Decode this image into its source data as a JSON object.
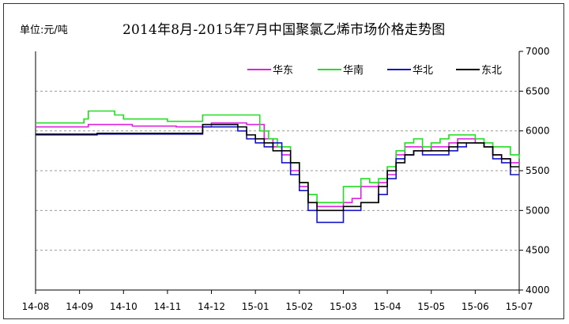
{
  "chart_data": {
    "type": "line",
    "title": "2014年8月-2015年7月中国聚氯乙烯市场价格走势图",
    "unit_label": "单位:元/吨",
    "xlabel": "",
    "ylabel": "",
    "ylim": [
      4000,
      7000
    ],
    "yticks": [
      4000,
      4500,
      5000,
      5500,
      6000,
      6500,
      7000
    ],
    "x_ticks": [
      "14-08",
      "14-09",
      "14-10",
      "14-11",
      "14-12",
      "15-01",
      "15-02",
      "15-03",
      "15-04",
      "15-05",
      "15-06",
      "15-07"
    ],
    "grid": true,
    "legend_position": "top-right",
    "series": [
      {
        "name": "华东",
        "color": "#e020e0",
        "points": [
          [
            0,
            6050
          ],
          [
            1.0,
            6050
          ],
          [
            1.2,
            6080
          ],
          [
            2.0,
            6080
          ],
          [
            2.2,
            6060
          ],
          [
            3.0,
            6060
          ],
          [
            3.2,
            6050
          ],
          [
            3.8,
            6050
          ],
          [
            4.0,
            6100
          ],
          [
            4.6,
            6100
          ],
          [
            4.8,
            6080
          ],
          [
            5.0,
            6080
          ],
          [
            5.2,
            5900
          ],
          [
            5.4,
            5800
          ],
          [
            5.6,
            5700
          ],
          [
            5.8,
            5500
          ],
          [
            6.0,
            5300
          ],
          [
            6.2,
            5100
          ],
          [
            6.4,
            5050
          ],
          [
            6.6,
            5050
          ],
          [
            6.8,
            5050
          ],
          [
            7.0,
            5100
          ],
          [
            7.2,
            5150
          ],
          [
            7.4,
            5300
          ],
          [
            7.6,
            5300
          ],
          [
            7.8,
            5350
          ],
          [
            8.0,
            5450
          ],
          [
            8.2,
            5700
          ],
          [
            8.4,
            5800
          ],
          [
            8.6,
            5800
          ],
          [
            8.8,
            5750
          ],
          [
            9.0,
            5800
          ],
          [
            9.2,
            5800
          ],
          [
            9.4,
            5850
          ],
          [
            9.6,
            5900
          ],
          [
            9.8,
            5900
          ],
          [
            10.0,
            5850
          ],
          [
            10.2,
            5800
          ],
          [
            10.4,
            5700
          ],
          [
            10.6,
            5650
          ],
          [
            10.8,
            5600
          ],
          [
            11.0,
            5600
          ]
        ]
      },
      {
        "name": "华南",
        "color": "#22dd22",
        "points": [
          [
            0,
            6100
          ],
          [
            0.9,
            6100
          ],
          [
            1.1,
            6150
          ],
          [
            1.2,
            6250
          ],
          [
            1.6,
            6250
          ],
          [
            1.8,
            6200
          ],
          [
            2.0,
            6150
          ],
          [
            2.8,
            6150
          ],
          [
            3.0,
            6120
          ],
          [
            3.6,
            6120
          ],
          [
            3.8,
            6200
          ],
          [
            4.6,
            6200
          ],
          [
            5.0,
            6200
          ],
          [
            5.1,
            6000
          ],
          [
            5.3,
            5900
          ],
          [
            5.5,
            5800
          ],
          [
            5.8,
            5600
          ],
          [
            6.0,
            5350
          ],
          [
            6.2,
            5200
          ],
          [
            6.4,
            5100
          ],
          [
            6.8,
            5100
          ],
          [
            7.0,
            5300
          ],
          [
            7.2,
            5300
          ],
          [
            7.4,
            5400
          ],
          [
            7.6,
            5350
          ],
          [
            7.8,
            5400
          ],
          [
            8.0,
            5550
          ],
          [
            8.2,
            5750
          ],
          [
            8.4,
            5850
          ],
          [
            8.6,
            5900
          ],
          [
            8.8,
            5800
          ],
          [
            9.0,
            5850
          ],
          [
            9.2,
            5900
          ],
          [
            9.4,
            5950
          ],
          [
            9.8,
            5950
          ],
          [
            10.0,
            5900
          ],
          [
            10.2,
            5850
          ],
          [
            10.4,
            5800
          ],
          [
            10.6,
            5800
          ],
          [
            10.8,
            5700
          ],
          [
            11.0,
            5650
          ]
        ]
      },
      {
        "name": "华北",
        "color": "#1515c8",
        "points": [
          [
            0,
            5950
          ],
          [
            1.2,
            5950
          ],
          [
            1.4,
            5960
          ],
          [
            3.2,
            5960
          ],
          [
            3.6,
            5960
          ],
          [
            3.8,
            6050
          ],
          [
            4.4,
            6050
          ],
          [
            4.6,
            6000
          ],
          [
            4.8,
            5900
          ],
          [
            5.0,
            5850
          ],
          [
            5.2,
            5800
          ],
          [
            5.4,
            5850
          ],
          [
            5.6,
            5600
          ],
          [
            5.8,
            5450
          ],
          [
            6.0,
            5250
          ],
          [
            6.2,
            5000
          ],
          [
            6.4,
            4850
          ],
          [
            6.8,
            4850
          ],
          [
            6.9,
            4850
          ],
          [
            7.0,
            5000
          ],
          [
            7.2,
            5000
          ],
          [
            7.4,
            5100
          ],
          [
            7.6,
            5100
          ],
          [
            7.8,
            5200
          ],
          [
            8.0,
            5400
          ],
          [
            8.2,
            5650
          ],
          [
            8.4,
            5700
          ],
          [
            8.6,
            5750
          ],
          [
            8.8,
            5700
          ],
          [
            9.0,
            5700
          ],
          [
            9.4,
            5750
          ],
          [
            9.6,
            5800
          ],
          [
            9.8,
            5850
          ],
          [
            10.0,
            5850
          ],
          [
            10.2,
            5800
          ],
          [
            10.4,
            5650
          ],
          [
            10.6,
            5600
          ],
          [
            10.8,
            5450
          ],
          [
            11.0,
            5450
          ]
        ]
      },
      {
        "name": "东北",
        "color": "#000000",
        "points": [
          [
            0,
            5960
          ],
          [
            1.2,
            5960
          ],
          [
            1.4,
            5970
          ],
          [
            3.2,
            5970
          ],
          [
            3.6,
            5970
          ],
          [
            3.8,
            6080
          ],
          [
            4.4,
            6080
          ],
          [
            4.6,
            6050
          ],
          [
            4.8,
            5950
          ],
          [
            5.0,
            5900
          ],
          [
            5.2,
            5850
          ],
          [
            5.4,
            5750
          ],
          [
            5.6,
            5750
          ],
          [
            5.8,
            5600
          ],
          [
            6.0,
            5350
          ],
          [
            6.2,
            5100
          ],
          [
            6.4,
            5000
          ],
          [
            6.8,
            5000
          ],
          [
            7.0,
            5050
          ],
          [
            7.2,
            5050
          ],
          [
            7.4,
            5100
          ],
          [
            7.6,
            5100
          ],
          [
            7.8,
            5300
          ],
          [
            8.0,
            5500
          ],
          [
            8.2,
            5600
          ],
          [
            8.4,
            5700
          ],
          [
            8.6,
            5750
          ],
          [
            8.8,
            5750
          ],
          [
            9.0,
            5750
          ],
          [
            9.4,
            5800
          ],
          [
            9.6,
            5850
          ],
          [
            9.8,
            5850
          ],
          [
            10.0,
            5850
          ],
          [
            10.2,
            5800
          ],
          [
            10.4,
            5700
          ],
          [
            10.6,
            5650
          ],
          [
            10.8,
            5550
          ],
          [
            11.0,
            5550
          ]
        ]
      }
    ]
  }
}
